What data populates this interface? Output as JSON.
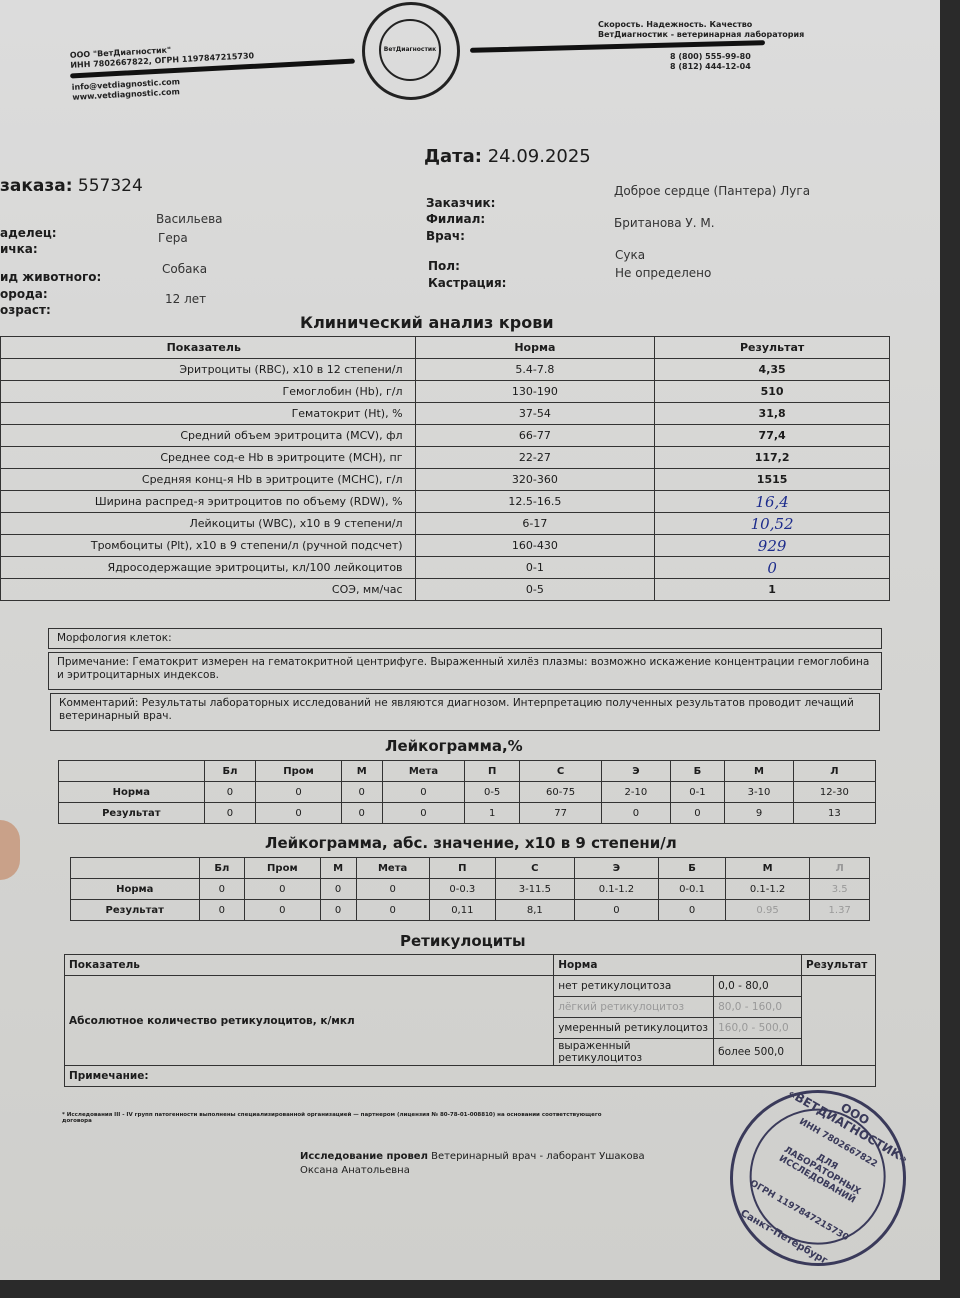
{
  "header": {
    "company_left": [
      "ООО \"ВетДиагностик\"",
      "ИНН 7802667822, ОГРН 1197847215730"
    ],
    "contacts_left": [
      "info@vetdiagnostic.com",
      "www.vetdiagnostic.com"
    ],
    "slogan_right": [
      "Скорость. Надежность. Качество",
      "ВетДиагностик - ветеринарная лаборатория"
    ],
    "phones_right": [
      "8 (800) 555-99-80",
      "8 (812) 444-12-04"
    ],
    "logo_text": "ВетДиагностик"
  },
  "info": {
    "date_label": "Дата:",
    "date": "24.09.2025",
    "order_label": "заказа:",
    "order": "557324",
    "owner_label": "аделец:",
    "owner": "Васильева",
    "pet_label": "ичка:",
    "pet": "Гера",
    "species_label": "ид животного:",
    "species": "Собака",
    "breed_label": "орода:",
    "age_label": "озраст:",
    "age": "12 лет",
    "customer_label": "Заказчик:",
    "customer": "Доброе сердце (Пантера) Луга",
    "branch_label": "Филиал:",
    "doctor_label": "Врач:",
    "doctor": "Британова У. М.",
    "sex_label": "Пол:",
    "sex": "Сука",
    "castration_label": "Кастрация:",
    "castration": "Не определено"
  },
  "cbc": {
    "title": "Клинический анализ крови",
    "headers": [
      "Показатель",
      "Норма",
      "Результат"
    ],
    "rows": [
      {
        "name": "Эритроциты (RBC), x10 в 12 степени/л",
        "norm": "5.4-7.8",
        "result": "4,35"
      },
      {
        "name": "Гемоглобин (Hb), г/л",
        "norm": "130-190",
        "result": "510"
      },
      {
        "name": "Гематокрит (Ht), %",
        "norm": "37-54",
        "result": "31,8"
      },
      {
        "name": "Средний объем эритроцита (MCV), фл",
        "norm": "66-77",
        "result": "77,4"
      },
      {
        "name": "Среднее сод-е Hb в эритроците (MCH), пг",
        "norm": "22-27",
        "result": "117,2"
      },
      {
        "name": "Средняя конц-я Hb в эритроците (MCHC), г/л",
        "norm": "320-360",
        "result": "1515"
      },
      {
        "name": "Ширина распред-я эритроцитов по объему (RDW), %",
        "norm": "12.5-16.5",
        "result": "16,4",
        "handwritten": true
      },
      {
        "name": "Лейкоциты (WBC), x10 в 9 степени/л",
        "norm": "6-17",
        "result": "10,52",
        "handwritten": true
      },
      {
        "name": "Тромбоциты (Plt), x10 в 9 степени/л (ручной подсчет)",
        "norm": "160-430",
        "result": "929",
        "handwritten": true
      },
      {
        "name": "Ядросодержащие эритроциты, кл/100 лейкоцитов",
        "norm": "0-1",
        "result": "0",
        "handwritten": true
      },
      {
        "name": "СОЭ, мм/час",
        "norm": "0-5",
        "result": "1"
      }
    ],
    "morphology": "Морфология клеток:",
    "note": "Примечание: Гематокрит измерен на гематокритной центрифуге. Выраженный хилёз плазмы: возможно искажение концентрации гемоглобина и эритроцитарных индексов.",
    "comment": "Комментарий: Результаты лабораторных исследований не являются диагнозом. Интерпретацию полученных результатов проводит лечащий ветеринарный врач."
  },
  "leuko_pct": {
    "title": "Лейкограмма,%",
    "headers": [
      "",
      "Бл",
      "Пром",
      "М",
      "Мета",
      "П",
      "С",
      "Э",
      "Б",
      "М",
      "Л"
    ],
    "rows": [
      [
        "Норма",
        "0",
        "0",
        "0",
        "0",
        "0-5",
        "60-75",
        "2-10",
        "0-1",
        "3-10",
        "12-30"
      ],
      [
        "Результат",
        "0",
        "0",
        "0",
        "0",
        "1",
        "77",
        "0",
        "0",
        "9",
        "13"
      ]
    ]
  },
  "leuko_abs": {
    "title": "Лейкограмма, абс. значение, x10 в 9 степени/л",
    "headers": [
      "",
      "Бл",
      "Пром",
      "М",
      "Мета",
      "П",
      "С",
      "Э",
      "Б",
      "М",
      "Л"
    ],
    "rows": [
      [
        "Норма",
        "0",
        "0",
        "0",
        "0",
        "0-0.3",
        "3-11.5",
        "0.1-1.2",
        "0-0.1",
        "0.1-1.2",
        "3.5"
      ],
      [
        "Результат",
        "0",
        "0",
        "0",
        "0",
        "0,11",
        "8,1",
        "0",
        "0",
        "0.95",
        "1.37"
      ]
    ]
  },
  "reticulocytes": {
    "title": "Ретикулоциты",
    "header_indicator": "Показатель",
    "header_norm": "Норма",
    "header_result": "Результат",
    "indicator": "Абсолютное количество ретикулоцитов, к/мкл",
    "norms": [
      [
        "нет ретикулоцитоза",
        "0,0 - 80,0"
      ],
      [
        "лёгкий ретикулоцитоз",
        "80,0 - 160,0"
      ],
      [
        "умеренный ретикулоцитоз",
        "160,0 - 500,0"
      ],
      [
        "выраженный ретикулоцитоз",
        "более 500,0"
      ]
    ],
    "note": "Примечание:"
  },
  "footer": {
    "footnote": "* Исследования III - IV групп патогенности выполнены специализированной организацией — партнером (лицензия № 80-78-01-008810) на основании соответствующего договора",
    "performed_label": "Исследование провел",
    "performed_by": "Ветеринарный врач - лаборант Ушакова Оксана Анатольевна",
    "stamp_text": [
      "ООО «ВЕТДИАГНОСТИК»",
      "ИНН 7802667822",
      "ДЛЯ ЛАБОРАТОРНЫХ ИССЛЕДОВАНИЙ",
      "ОГРН 1197847215730",
      "Санкт-Петербург"
    ]
  }
}
